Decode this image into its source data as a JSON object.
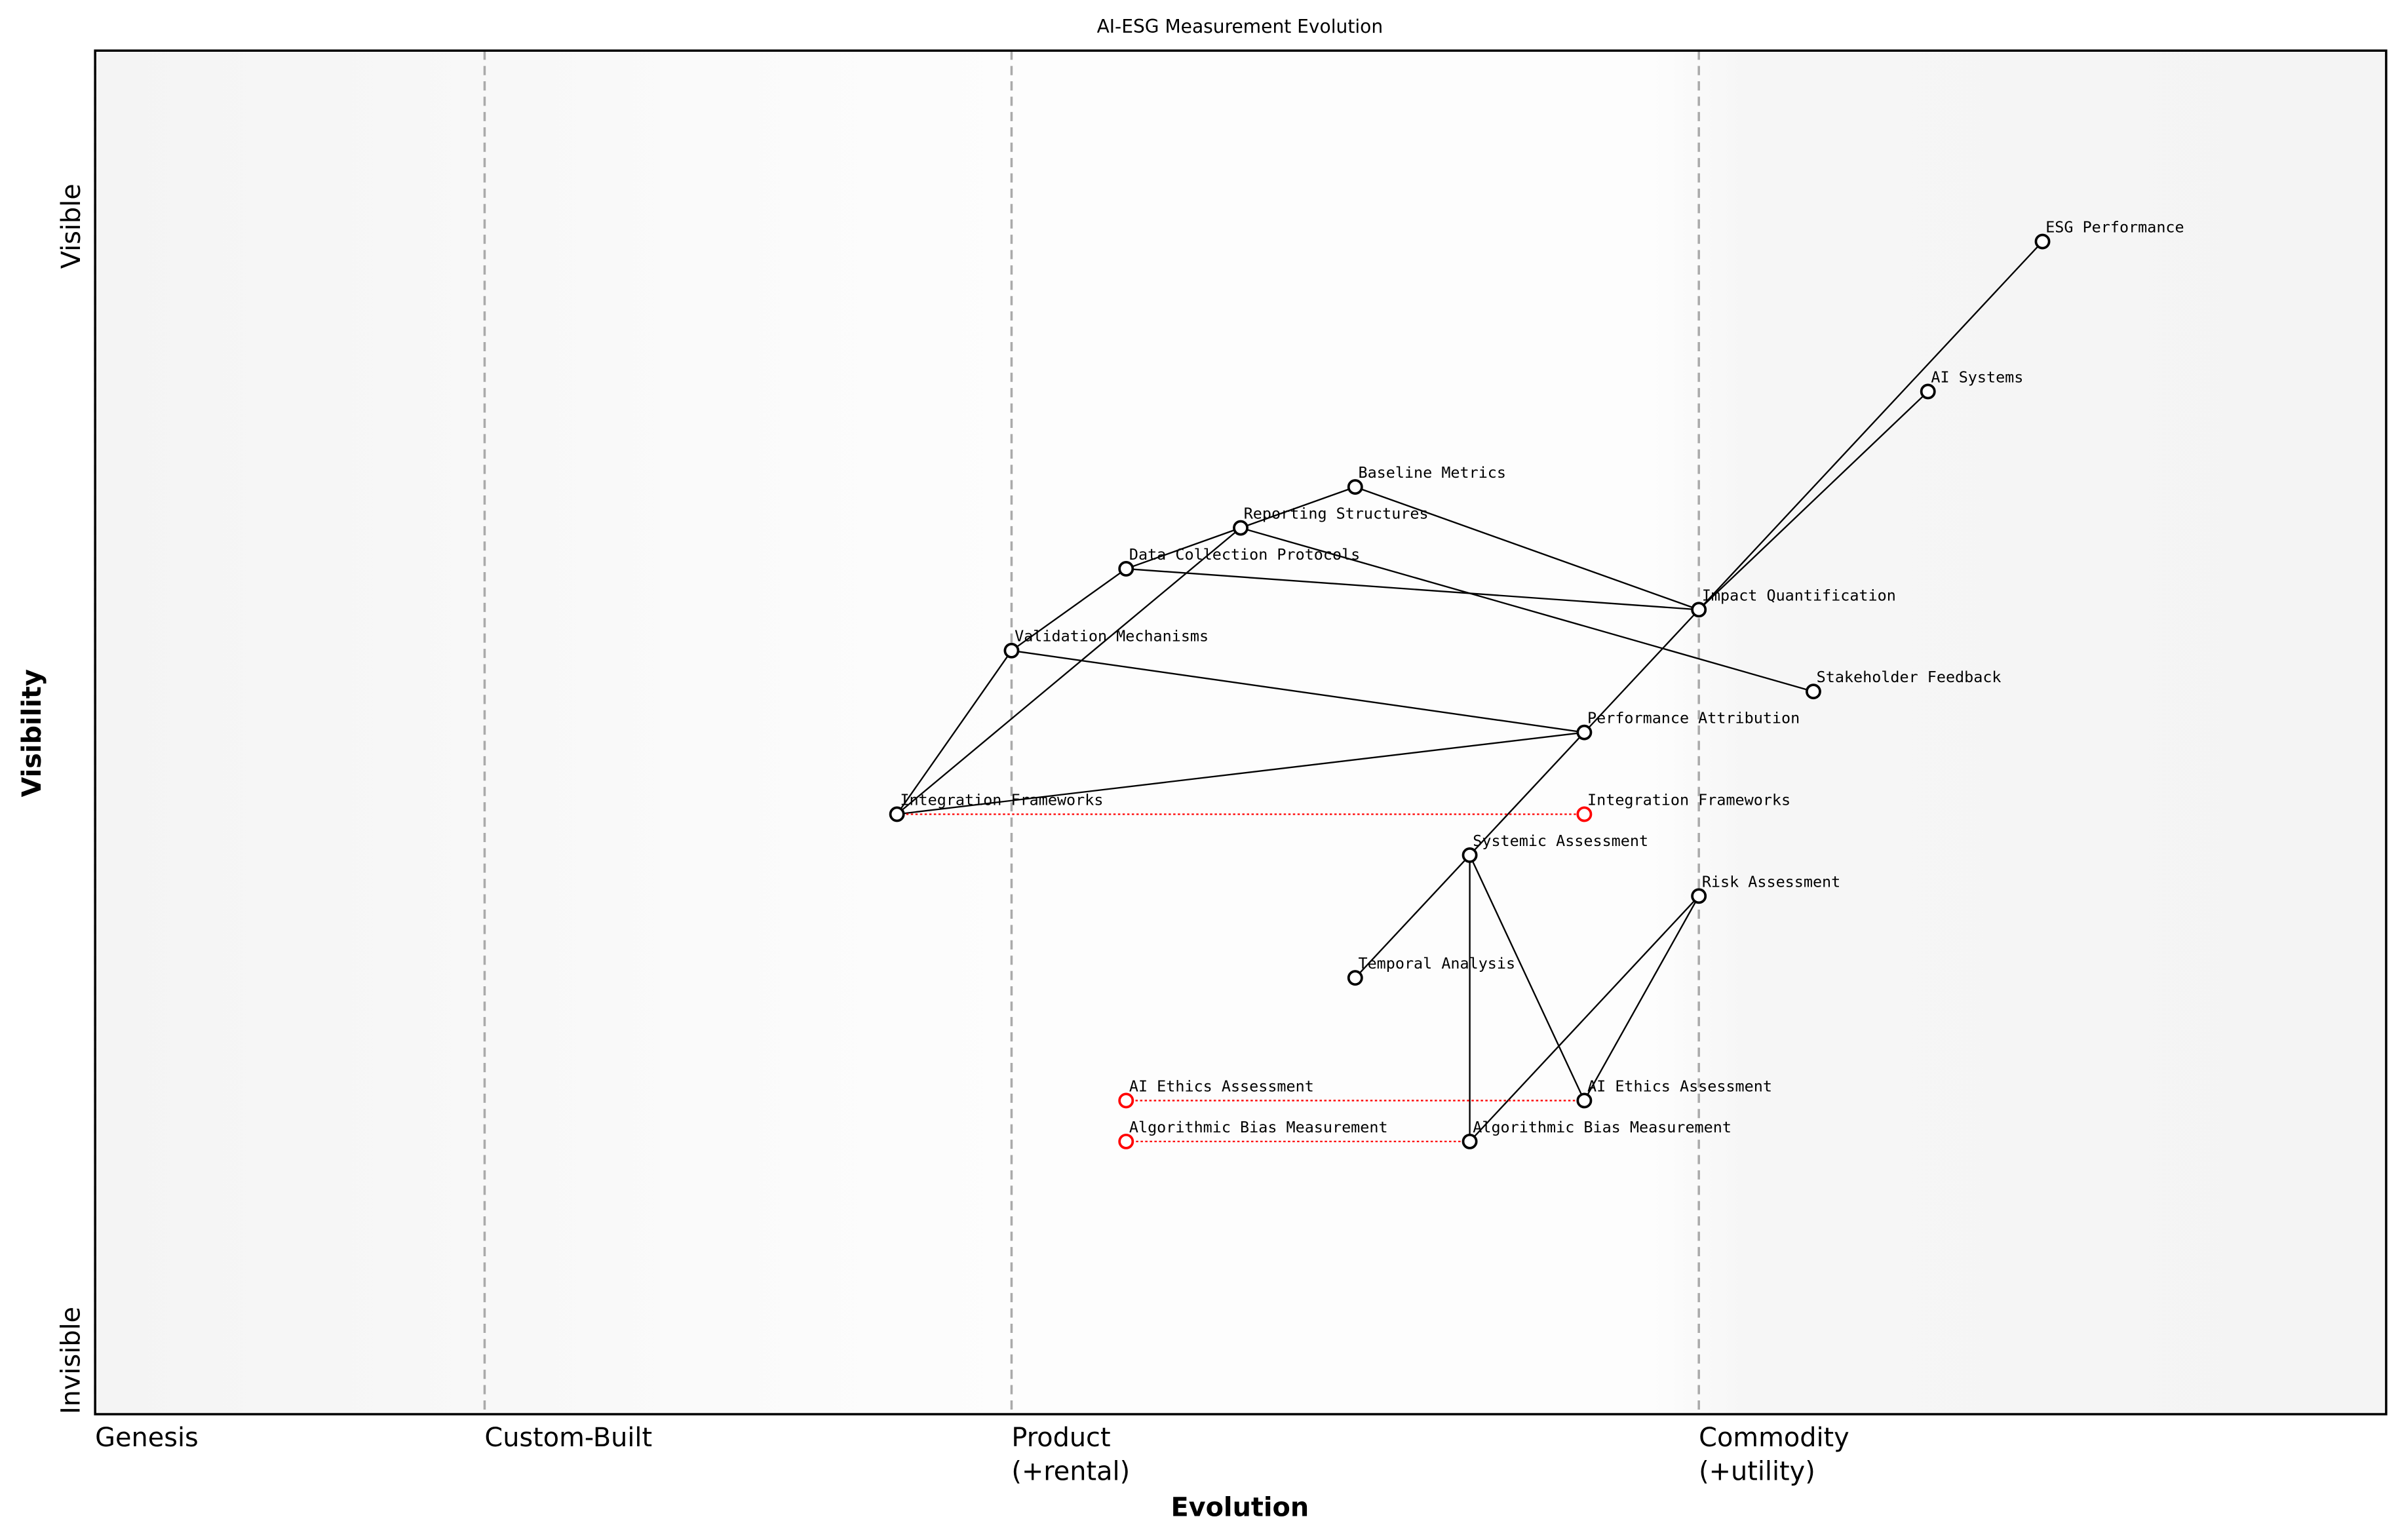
{
  "chart_data": {
    "type": "wardley",
    "title": "AI-ESG Measurement Evolution",
    "xlabel": "Evolution",
    "ylabel": "Visibility",
    "xlim": [
      0,
      1
    ],
    "ylim": [
      0,
      1
    ],
    "xticks": [
      {
        "value": 0,
        "label": "Genesis"
      },
      {
        "value": 0.17,
        "label": "Custom-Built"
      },
      {
        "value": 0.4,
        "label": "Product\n(+rental)"
      },
      {
        "value": 0.7,
        "label": "Commodity\n(+utility)"
      }
    ],
    "yticks": [
      {
        "value": 0,
        "label": "Invisible"
      },
      {
        "value": 0.84,
        "label": "Visible"
      }
    ],
    "node_color": "#000000",
    "evolve_color": "#ff0000",
    "components": [
      {
        "name": "ESG Performance",
        "evolution": 0.85,
        "visibility": 0.86
      },
      {
        "name": "AI Systems",
        "evolution": 0.8,
        "visibility": 0.75
      },
      {
        "name": "Baseline Metrics",
        "evolution": 0.55,
        "visibility": 0.68
      },
      {
        "name": "Reporting Structures",
        "evolution": 0.5,
        "visibility": 0.65
      },
      {
        "name": "Data Collection Protocols",
        "evolution": 0.45,
        "visibility": 0.62
      },
      {
        "name": "Validation Mechanisms",
        "evolution": 0.4,
        "visibility": 0.56
      },
      {
        "name": "Impact Quantification",
        "evolution": 0.7,
        "visibility": 0.59
      },
      {
        "name": "Stakeholder Feedback",
        "evolution": 0.75,
        "visibility": 0.53
      },
      {
        "name": "Performance Attribution",
        "evolution": 0.65,
        "visibility": 0.5
      },
      {
        "name": "Integration Frameworks",
        "evolution": 0.35,
        "visibility": 0.44
      },
      {
        "name": "Systemic Assessment",
        "evolution": 0.6,
        "visibility": 0.41
      },
      {
        "name": "Risk Assessment",
        "evolution": 0.7,
        "visibility": 0.38
      },
      {
        "name": "Temporal Analysis",
        "evolution": 0.55,
        "visibility": 0.32
      },
      {
        "name": "AI Ethics Assessment",
        "evolution": 0.65,
        "visibility": 0.23
      },
      {
        "name": "Algorithmic Bias Measurement",
        "evolution": 0.6,
        "visibility": 0.2
      }
    ],
    "links": [
      [
        0,
        6
      ],
      [
        1,
        6
      ],
      [
        6,
        8
      ],
      [
        8,
        10
      ],
      [
        2,
        6
      ],
      [
        2,
        3
      ],
      [
        3,
        4
      ],
      [
        3,
        7
      ],
      [
        3,
        9
      ],
      [
        4,
        6
      ],
      [
        4,
        5
      ],
      [
        5,
        9
      ],
      [
        5,
        8
      ],
      [
        9,
        8
      ],
      [
        10,
        12
      ],
      [
        10,
        14
      ],
      [
        10,
        13
      ],
      [
        11,
        13
      ],
      [
        11,
        14
      ]
    ],
    "evolutions": [
      {
        "component": 9,
        "evolution": 0.65
      },
      {
        "component": 13,
        "evolution": 0.45
      },
      {
        "component": 14,
        "evolution": 0.45
      }
    ]
  }
}
